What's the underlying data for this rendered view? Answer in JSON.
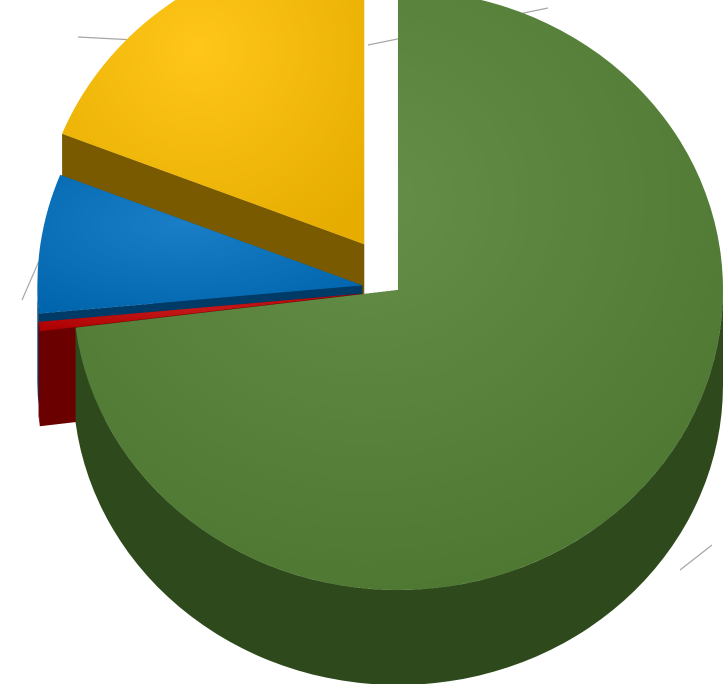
{
  "chart_data": {
    "type": "pie",
    "style": "3d-exploded",
    "title": "",
    "legend": "none",
    "series": [
      {
        "values": [
          73,
          0.5,
          7.5,
          19
        ],
        "colors": [
          "#548235",
          "#C00000",
          "#0070C0",
          "#FFC000"
        ],
        "side_colors": [
          "#2E4A1C",
          "#6B0000",
          "#003A66",
          "#7A5A00"
        ]
      }
    ]
  }
}
